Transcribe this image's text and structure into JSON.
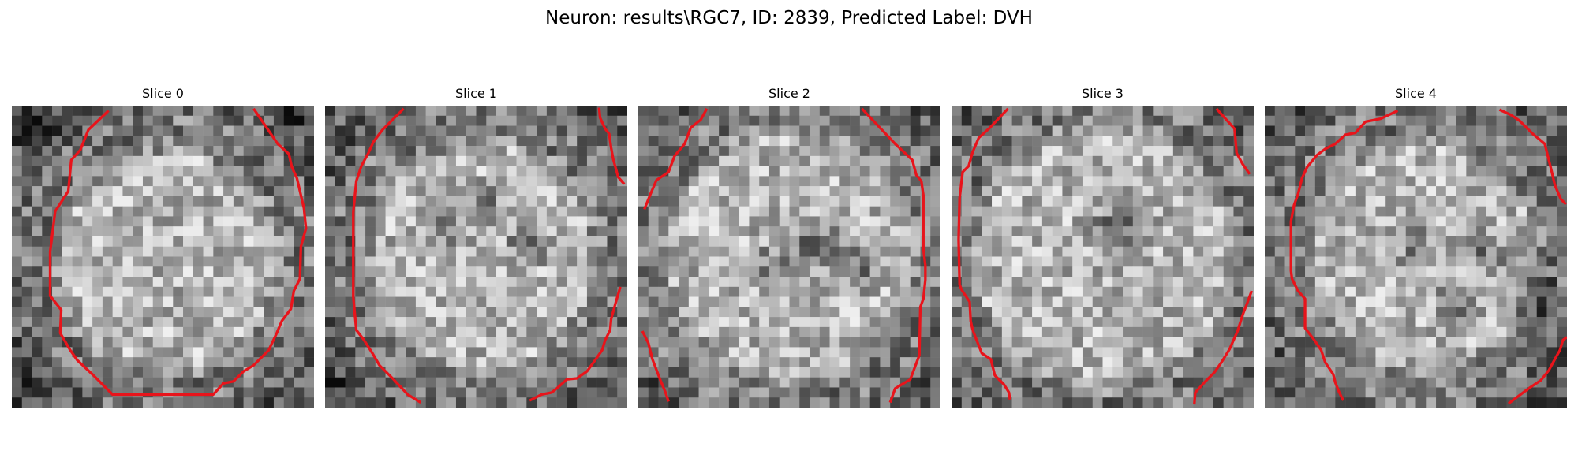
{
  "figure": {
    "title": "Neuron: results\\RGC7, ID: 2839, Predicted Label: DVH"
  },
  "slices": [
    {
      "title": "Slice 0"
    },
    {
      "title": "Slice 1"
    },
    {
      "title": "Slice 2"
    },
    {
      "title": "Slice 3"
    },
    {
      "title": "Slice 4"
    }
  ],
  "colors": {
    "contour": "#e8141b",
    "background": "#ffffff"
  }
}
